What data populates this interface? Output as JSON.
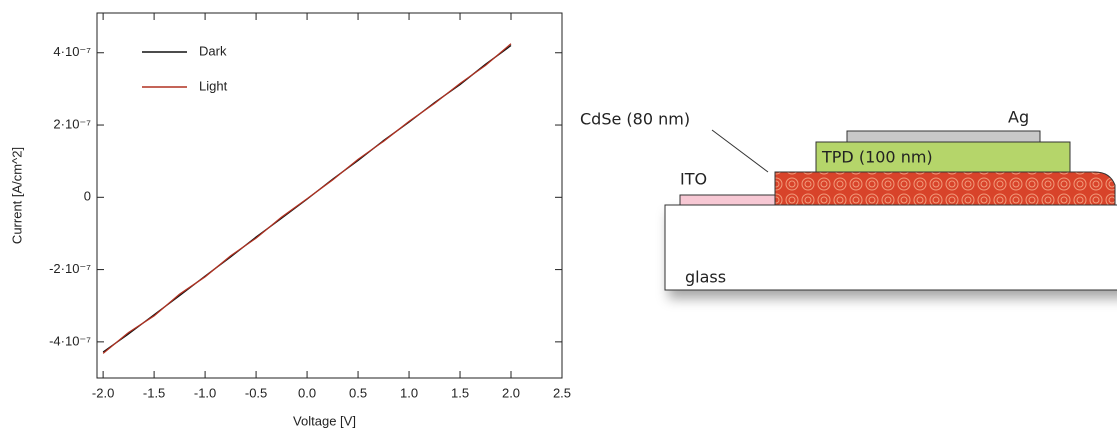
{
  "chart_data": {
    "type": "line",
    "xlabel": "Voltage [V]",
    "ylabel": "Current [A/cm^2]",
    "x": [
      -2.0,
      -1.75,
      -1.5,
      -1.25,
      -1.0,
      -0.75,
      -0.5,
      -0.25,
      0.0,
      0.25,
      0.5,
      0.75,
      1.0,
      1.25,
      1.5,
      1.75,
      2.0
    ],
    "series": [
      {
        "name": "Dark",
        "color": "#111111",
        "values": [
          -4.28e-07,
          -3.78e-07,
          -3.25e-07,
          -2.72e-07,
          -2.18e-07,
          -1.65e-07,
          -1.1e-07,
          -5.8e-08,
          -5e-09,
          5e-08,
          1.02e-07,
          1.57e-07,
          2.08e-07,
          2.62e-07,
          3.12e-07,
          3.68e-07,
          4.2e-07
        ]
      },
      {
        "name": "Light",
        "color": "#b03020",
        "values": [
          -4.32e-07,
          -3.74e-07,
          -3.28e-07,
          -2.68e-07,
          -2.2e-07,
          -1.62e-07,
          -1.13e-07,
          -5.5e-08,
          -4e-09,
          4.8e-08,
          1.05e-07,
          1.55e-07,
          2.1e-07,
          2.6e-07,
          3.15e-07,
          3.65e-07,
          4.25e-07
        ]
      }
    ],
    "xlim": [
      -2.06,
      2.5
    ],
    "xticks": [
      {
        "value": -2.0,
        "label": "-2.0"
      },
      -1.5,
      {
        "value": -1.0,
        "label": "-1.0"
      },
      -0.5,
      {
        "value": 0.0,
        "label": "0.0"
      },
      0.5,
      {
        "value": 1.0,
        "label": "1.0"
      },
      1.5,
      {
        "value": 2.0,
        "label": "2.0"
      },
      2.5
    ],
    "ylim": [
      -5e-07,
      5.1e-07
    ],
    "yticks": [
      {
        "value": -4e-07,
        "label": "-4·10⁻⁷"
      },
      {
        "value": -2e-07,
        "label": "-2·10⁻⁷"
      },
      0,
      {
        "value": 2e-07,
        "label": "2·10⁻⁷"
      },
      {
        "value": 4e-07,
        "label": "4·10⁻⁷"
      }
    ],
    "legend": "upper left",
    "grid": false
  },
  "diagram": {
    "labels": {
      "cdse": "CdSe (80 nm)",
      "ag": "Ag",
      "tpd": "TPD (100 nm)",
      "ito": "ITO",
      "glass": "glass"
    }
  }
}
